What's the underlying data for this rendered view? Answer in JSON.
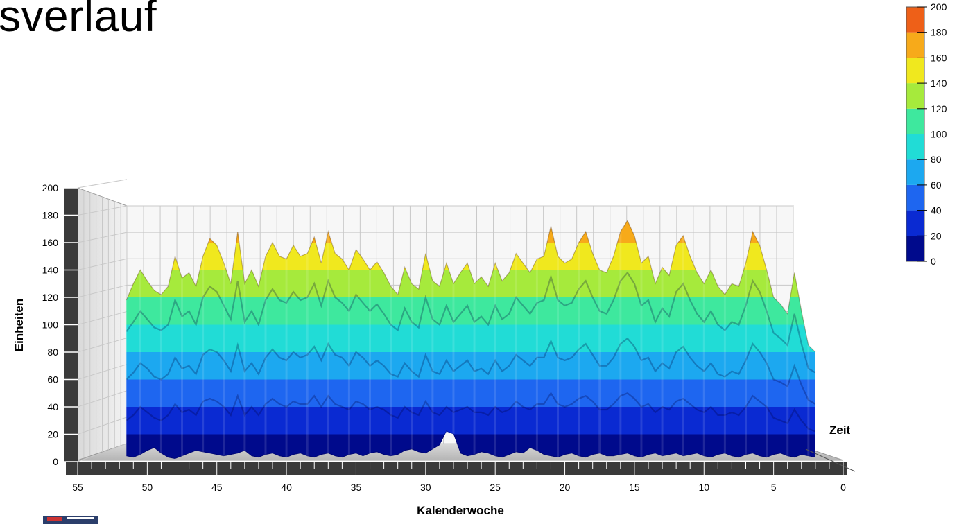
{
  "slide": {
    "title": "sverlauf"
  },
  "chart_data": {
    "type": "area",
    "render": "3d-surface",
    "xlabel": "Kalenderwoche",
    "ylabel": "Einheiten",
    "zlabel": "Zeit",
    "xlim": [
      55,
      0
    ],
    "ylim": [
      0,
      200
    ],
    "x_ticks": [
      55,
      50,
      45,
      40,
      35,
      30,
      25,
      20,
      15,
      10,
      5,
      0
    ],
    "y_ticks": [
      0,
      20,
      40,
      60,
      80,
      100,
      120,
      140,
      160,
      180,
      200
    ],
    "colorscale": {
      "ticks": [
        0,
        20,
        40,
        60,
        80,
        100,
        120,
        140,
        160,
        180,
        200
      ],
      "bands": [
        "#000a8c",
        "#0a2ad2",
        "#1e66f0",
        "#1ca8f0",
        "#21dcd6",
        "#3ee89e",
        "#a6ea3c",
        "#f0e81e",
        "#f7aa1a",
        "#ee6018",
        "#e01414"
      ]
    },
    "grid": true,
    "x": [
      51.5,
      51,
      50.5,
      50,
      49.5,
      49,
      48.5,
      48,
      47.5,
      47,
      46.5,
      46,
      45.5,
      45,
      44.5,
      44,
      43.5,
      43,
      42.5,
      42,
      41.5,
      41,
      40.5,
      40,
      39.5,
      39,
      38.5,
      38,
      37.5,
      37,
      36.5,
      36,
      35.5,
      35,
      34.5,
      34,
      33.5,
      33,
      32.5,
      32,
      31.5,
      31,
      30.5,
      30,
      29.5,
      29,
      28.5,
      28,
      27.5,
      27,
      26.5,
      26,
      25.5,
      25,
      24.5,
      24,
      23.5,
      23,
      22.5,
      22,
      21.5,
      21,
      20.5,
      20,
      19.5,
      19,
      18.5,
      18,
      17.5,
      17,
      16.5,
      16,
      15.5,
      15,
      14.5,
      14,
      13.5,
      13,
      12.5,
      12,
      11.5,
      11,
      10.5,
      10,
      9.5,
      9,
      8.5,
      8,
      7.5,
      7,
      6.5,
      6,
      5.5,
      5,
      4.5,
      4,
      3.5,
      3,
      2.5,
      2
    ],
    "series": [
      {
        "values": [
          118,
          130,
          140,
          132,
          125,
          122,
          128,
          150,
          134,
          138,
          128,
          150,
          163,
          158,
          145,
          130,
          168,
          130,
          140,
          128,
          150,
          160,
          150,
          148,
          158,
          150,
          152,
          164,
          145,
          168,
          152,
          148,
          140,
          155,
          148,
          140,
          146,
          138,
          128,
          122,
          142,
          130,
          126,
          152,
          132,
          128,
          145,
          130,
          138,
          145,
          130,
          135,
          128,
          145,
          132,
          138,
          152,
          145,
          138,
          148,
          150,
          172,
          150,
          145,
          148,
          160,
          168,
          152,
          140,
          138,
          150,
          168,
          176,
          165,
          145,
          150,
          130,
          142,
          136,
          158,
          165,
          150,
          138,
          130,
          140,
          128,
          122,
          130,
          128,
          145,
          168,
          158,
          140,
          120,
          115,
          108,
          138,
          110,
          85,
          80
        ]
      },
      {
        "values": [
          95,
          102,
          110,
          104,
          98,
          96,
          100,
          118,
          106,
          110,
          100,
          120,
          128,
          124,
          114,
          104,
          132,
          102,
          110,
          100,
          118,
          126,
          118,
          116,
          124,
          118,
          120,
          130,
          114,
          132,
          120,
          116,
          110,
          122,
          116,
          110,
          115,
          108,
          100,
          96,
          112,
          102,
          98,
          120,
          104,
          100,
          114,
          102,
          108,
          114,
          102,
          106,
          100,
          114,
          104,
          108,
          120,
          114,
          108,
          116,
          118,
          135,
          118,
          114,
          116,
          126,
          132,
          120,
          110,
          108,
          118,
          132,
          138,
          130,
          114,
          118,
          102,
          112,
          106,
          124,
          130,
          118,
          108,
          102,
          110,
          100,
          96,
          102,
          100,
          114,
          132,
          124,
          110,
          94,
          90,
          85,
          108,
          86,
          68,
          65
        ]
      },
      {
        "values": [
          60,
          65,
          72,
          68,
          62,
          60,
          64,
          76,
          68,
          70,
          64,
          78,
          82,
          80,
          74,
          66,
          85,
          66,
          72,
          64,
          76,
          82,
          76,
          74,
          80,
          76,
          78,
          84,
          74,
          86,
          78,
          76,
          70,
          80,
          76,
          70,
          74,
          70,
          64,
          62,
          72,
          66,
          62,
          78,
          66,
          64,
          74,
          66,
          70,
          74,
          66,
          68,
          64,
          74,
          66,
          70,
          78,
          74,
          70,
          76,
          76,
          88,
          76,
          74,
          76,
          82,
          86,
          78,
          70,
          70,
          76,
          86,
          90,
          84,
          74,
          76,
          66,
          72,
          68,
          80,
          84,
          76,
          70,
          66,
          72,
          64,
          62,
          66,
          64,
          74,
          86,
          80,
          72,
          60,
          58,
          55,
          70,
          56,
          45,
          42
        ]
      },
      {
        "values": [
          30,
          34,
          40,
          36,
          32,
          30,
          34,
          42,
          36,
          38,
          34,
          44,
          46,
          44,
          40,
          34,
          48,
          34,
          40,
          34,
          42,
          46,
          42,
          40,
          44,
          42,
          42,
          48,
          40,
          48,
          42,
          40,
          38,
          44,
          42,
          38,
          40,
          38,
          34,
          32,
          40,
          36,
          34,
          44,
          36,
          34,
          40,
          36,
          38,
          40,
          36,
          36,
          34,
          40,
          36,
          38,
          44,
          40,
          38,
          42,
          42,
          50,
          42,
          40,
          42,
          46,
          48,
          44,
          38,
          38,
          42,
          48,
          50,
          46,
          40,
          42,
          36,
          40,
          38,
          44,
          46,
          42,
          38,
          36,
          40,
          34,
          34,
          36,
          34,
          40,
          48,
          44,
          40,
          32,
          30,
          28,
          38,
          30,
          24,
          22
        ]
      },
      {
        "values": [
          4,
          3,
          5,
          8,
          10,
          6,
          3,
          2,
          4,
          6,
          8,
          7,
          6,
          5,
          4,
          5,
          6,
          8,
          4,
          3,
          5,
          6,
          4,
          3,
          5,
          6,
          4,
          3,
          5,
          6,
          4,
          3,
          5,
          6,
          4,
          6,
          7,
          5,
          4,
          5,
          8,
          9,
          7,
          6,
          9,
          12,
          22,
          20,
          6,
          4,
          5,
          7,
          6,
          4,
          3,
          5,
          7,
          6,
          10,
          8,
          5,
          4,
          3,
          5,
          6,
          4,
          3,
          5,
          6,
          4,
          4,
          5,
          6,
          4,
          3,
          5,
          6,
          4,
          5,
          6,
          4,
          5,
          6,
          4,
          3,
          5,
          6,
          4,
          3,
          5,
          6,
          4,
          3,
          5,
          6,
          4,
          3,
          5,
          4,
          3
        ]
      }
    ]
  }
}
